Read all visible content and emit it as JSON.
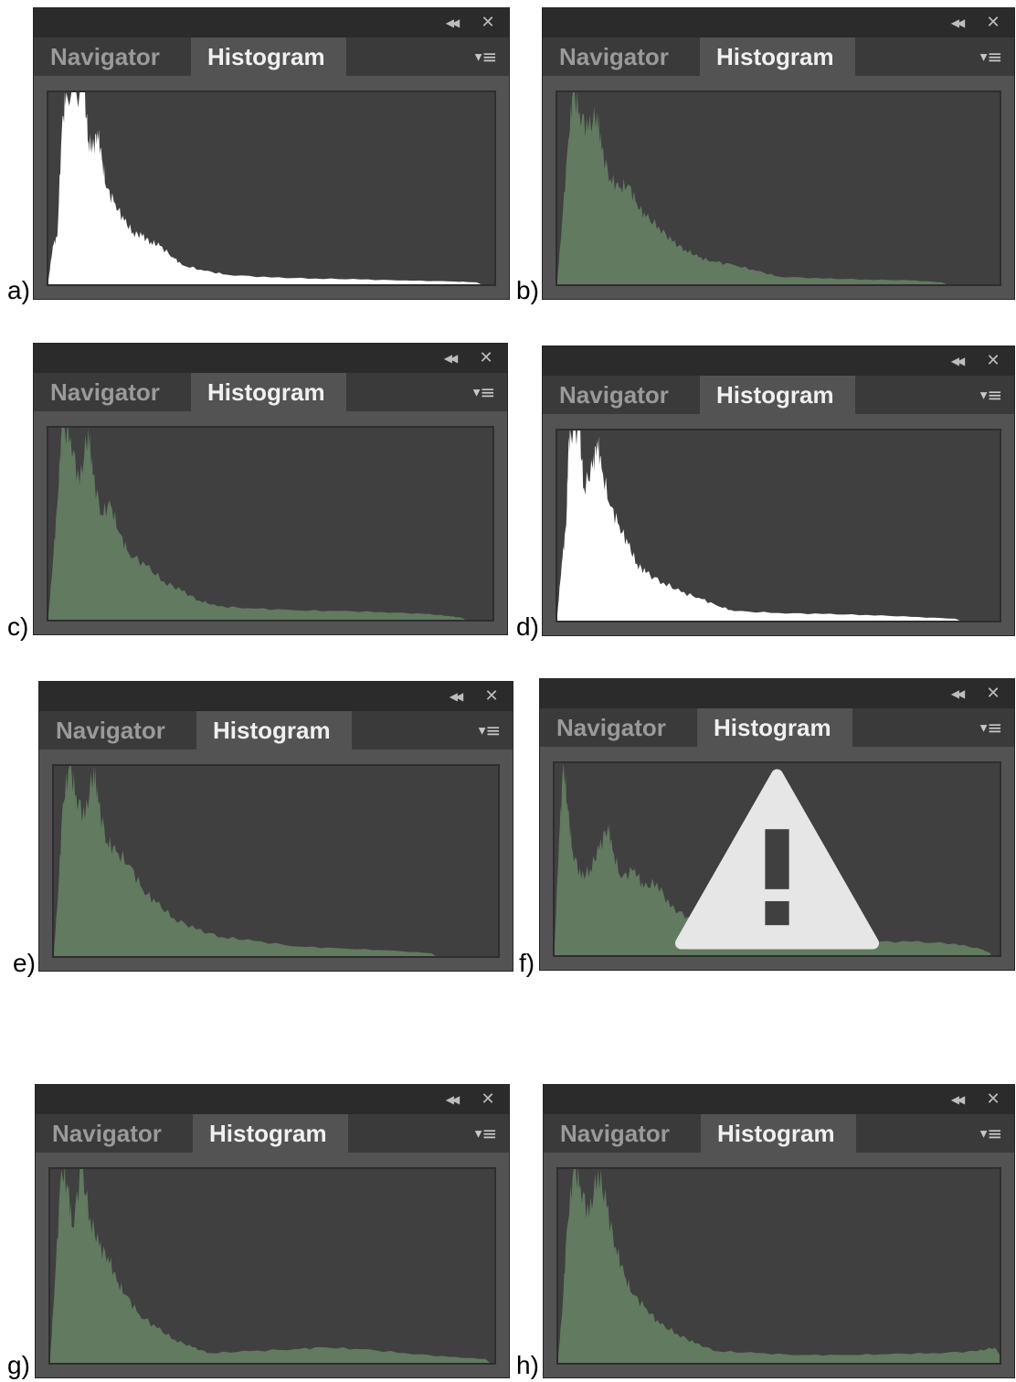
{
  "panels": [
    {
      "letter": "a)",
      "fill": "#ffffff",
      "warning": false
    },
    {
      "letter": "b)",
      "fill": "#617a60",
      "warning": false
    },
    {
      "letter": "c)",
      "fill": "#617a60",
      "warning": false
    },
    {
      "letter": "d)",
      "fill": "#ffffff",
      "warning": false
    },
    {
      "letter": "e)",
      "fill": "#617a60",
      "warning": false
    },
    {
      "letter": "f)",
      "fill": "#617a60",
      "warning": true
    },
    {
      "letter": "g)",
      "fill": "#617a60",
      "warning": false
    },
    {
      "letter": "h)",
      "fill": "#617a60",
      "warning": false
    }
  ],
  "tabs": {
    "navigator": "Navigator",
    "histogram": "Histogram"
  },
  "icons": {
    "collapse": "double-chevron-left-icon",
    "close": "close-icon",
    "panel_menu": "panel-menu-icon",
    "warning": "warning-triangle-icon"
  },
  "colors": {
    "panel_bg": "#535353",
    "titlebar": "#2b2b2b",
    "histogram_bg": "#404040",
    "green_histogram": "#617a60",
    "white_histogram": "#ffffff"
  }
}
